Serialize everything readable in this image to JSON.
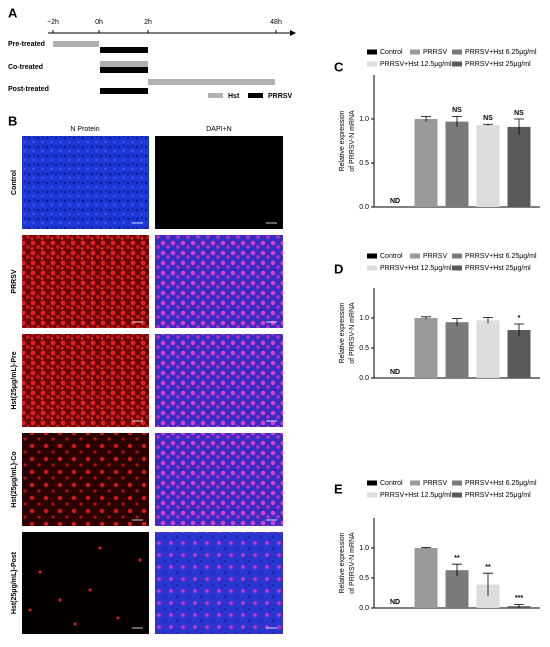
{
  "panel_letters": [
    "A",
    "B",
    "C",
    "D",
    "E"
  ],
  "timeline": {
    "ticks": [
      "−2h",
      "0h",
      "2h",
      "48h"
    ],
    "rows": [
      "Pre-treated",
      "Co-treated",
      "Post-treated"
    ],
    "legend": [
      "Hst",
      "PRRSV"
    ]
  },
  "microscopy": {
    "column_headers": [
      "N Protein",
      "DAPI+N"
    ],
    "row_labels": [
      "Control",
      "PRRSV",
      "Hst(25μg/mL)-Pre",
      "Hst(25μg/mL)-Co",
      "Hst(25μg/mL)-Post"
    ]
  },
  "chart_data": [
    {
      "type": "bar",
      "y_label": [
        "Relative expression",
        "of PRRSV-N mRNA"
      ],
      "ylim": [
        0,
        1.5
      ],
      "yticks": [
        {
          "value": 0,
          "label": "0.0"
        },
        {
          "value": 0.5,
          "label": "0.5"
        },
        {
          "value": 1,
          "label": "1.0"
        }
      ],
      "series": [
        {
          "name": "Control",
          "color": "#000000",
          "values": [
            null
          ],
          "annotation": "ND"
        },
        {
          "name": "PRRSV",
          "color": "#9a9a9a",
          "values": [
            1.0
          ],
          "errors": [
            0.03
          ]
        },
        {
          "name": "PRRSV+Hst 6.25μg/ml",
          "color": "#7a7a7a",
          "values": [
            0.97
          ],
          "errors": [
            0.06
          ],
          "annotation": "NS"
        },
        {
          "name": "PRRSV+Hst 12.5μg/ml",
          "color": "#dcdcdc",
          "values": [
            0.93
          ],
          "errors": [
            0.01
          ],
          "annotation": "NS"
        },
        {
          "name": "PRRSV+Hst 25μg/ml",
          "color": "#5a5a5a",
          "values": [
            0.91
          ],
          "errors": [
            0.09
          ],
          "annotation": "NS"
        }
      ]
    },
    {
      "type": "bar",
      "y_label": [
        "Relative expression",
        "of PRRSV-N mRNA"
      ],
      "ylim": [
        0,
        1.5
      ],
      "yticks": [
        {
          "value": 0,
          "label": "0.0"
        },
        {
          "value": 0.5,
          "label": "0.5"
        },
        {
          "value": 1,
          "label": "1.0"
        }
      ],
      "series": [
        {
          "name": "Control",
          "color": "#000000",
          "values": [
            null
          ],
          "annotation": "ND"
        },
        {
          "name": "PRRSV",
          "color": "#9a9a9a",
          "values": [
            1.0
          ],
          "errors": [
            0.02
          ]
        },
        {
          "name": "PRRSV+Hst 6.25μg/ml",
          "color": "#7a7a7a",
          "values": [
            0.93
          ],
          "errors": [
            0.06
          ]
        },
        {
          "name": "PRRSV+Hst 12.5μg/ml",
          "color": "#dcdcdc",
          "values": [
            0.96
          ],
          "errors": [
            0.05
          ]
        },
        {
          "name": "PRRSV+Hst 25μg/ml",
          "color": "#5a5a5a",
          "values": [
            0.8
          ],
          "errors": [
            0.1
          ],
          "annotation": "*"
        }
      ]
    },
    {
      "type": "bar",
      "y_label": [
        "Relative expression",
        "of PRRSV-N mRNA"
      ],
      "ylim": [
        0,
        1.5
      ],
      "yticks": [
        {
          "value": 0,
          "label": "0.0"
        },
        {
          "value": 0.5,
          "label": "0.5"
        },
        {
          "value": 1,
          "label": "1.0"
        }
      ],
      "series": [
        {
          "name": "Control",
          "color": "#000000",
          "values": [
            null
          ],
          "annotation": "ND"
        },
        {
          "name": "PRRSV",
          "color": "#9a9a9a",
          "values": [
            1.0
          ],
          "errors": [
            0.01
          ]
        },
        {
          "name": "PRRSV+Hst 6.25μg/ml",
          "color": "#7a7a7a",
          "values": [
            0.63
          ],
          "errors": [
            0.1
          ],
          "annotation": "**"
        },
        {
          "name": "PRRSV+Hst 12.5μg/ml",
          "color": "#dcdcdc",
          "values": [
            0.39
          ],
          "errors": [
            0.19
          ],
          "annotation": "**"
        },
        {
          "name": "PRRSV+Hst 25μg/ml",
          "color": "#5a5a5a",
          "values": [
            0.03
          ],
          "errors": [
            0.03
          ],
          "annotation": "***"
        }
      ]
    }
  ]
}
